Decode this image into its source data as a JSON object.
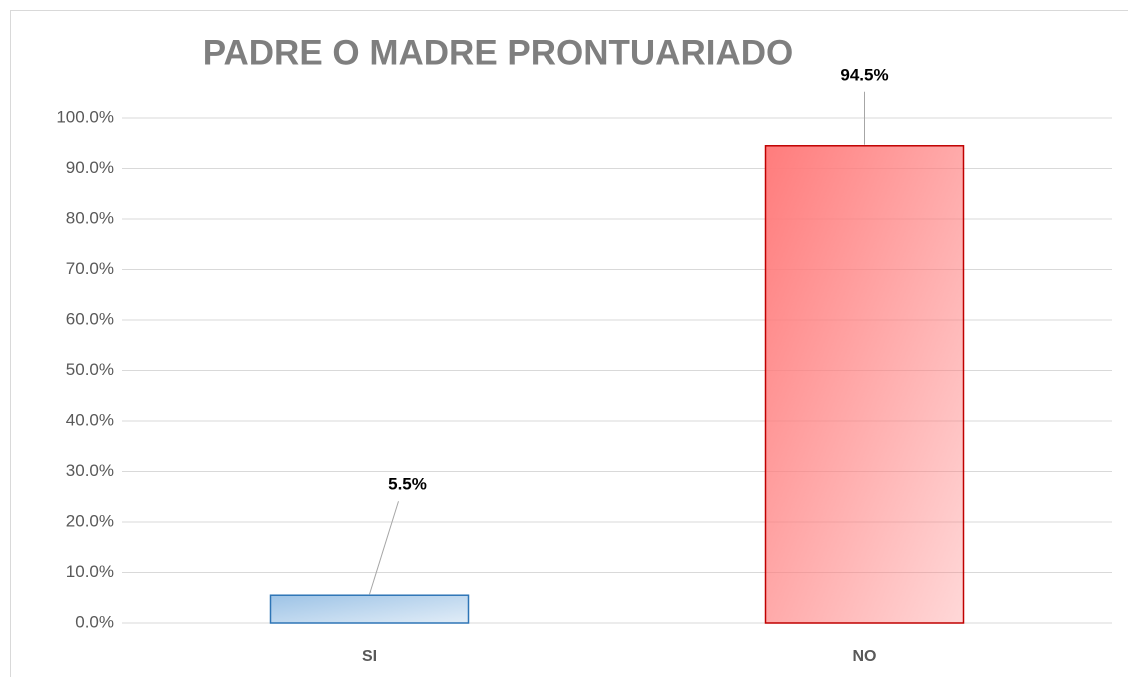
{
  "chart_data": {
    "type": "bar",
    "title": "PADRE O MADRE PRONTUARIADO",
    "categories": [
      "SI",
      "NO"
    ],
    "values": [
      5.5,
      94.5
    ],
    "value_labels": [
      "5.5%",
      "94.5%"
    ],
    "colors": [
      "#9dc3e6",
      "#ff7c7c"
    ],
    "edge_colors": [
      "#2e75b6",
      "#c00000"
    ],
    "ylim": [
      0,
      100
    ],
    "yticks": [
      {
        "value": 0,
        "label": "0.0%"
      },
      {
        "value": 10,
        "label": "10.0%"
      },
      {
        "value": 20,
        "label": "20.0%"
      },
      {
        "value": 30,
        "label": "30.0%"
      },
      {
        "value": 40,
        "label": "40.0%"
      },
      {
        "value": 50,
        "label": "50.0%"
      },
      {
        "value": 60,
        "label": "60.0%"
      },
      {
        "value": 70,
        "label": "70.0%"
      },
      {
        "value": 80,
        "label": "80.0%"
      },
      {
        "value": 90,
        "label": "90.0%"
      },
      {
        "value": 100,
        "label": "100.0%"
      }
    ],
    "grid": true
  }
}
